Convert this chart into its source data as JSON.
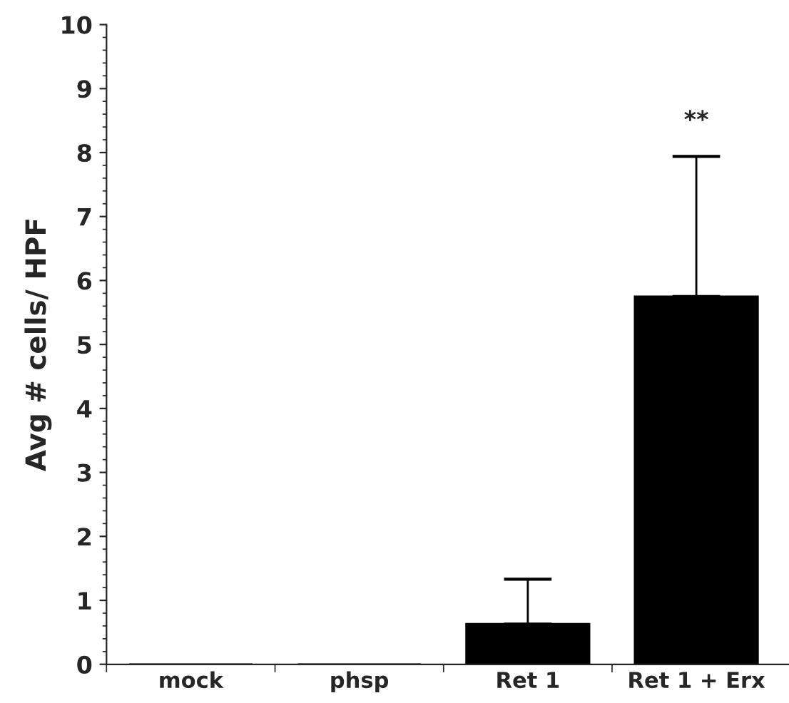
{
  "chart_data": {
    "type": "bar",
    "ylabel": "Avg # cells/ HPF",
    "categories": [
      "mock",
      "phsp",
      "Ret 1",
      "Ret 1 + Erx"
    ],
    "values": [
      0,
      0,
      0.63,
      5.75
    ],
    "errors": [
      null,
      null,
      [
        0.63,
        1.33
      ],
      [
        5.75,
        7.94
      ]
    ],
    "color": "#000000",
    "ylim": [
      0,
      10
    ],
    "yticks": [
      0,
      1,
      2,
      3,
      4,
      5,
      6,
      7,
      8,
      9,
      10
    ],
    "grid": false,
    "annotations": [
      "**"
    ]
  }
}
